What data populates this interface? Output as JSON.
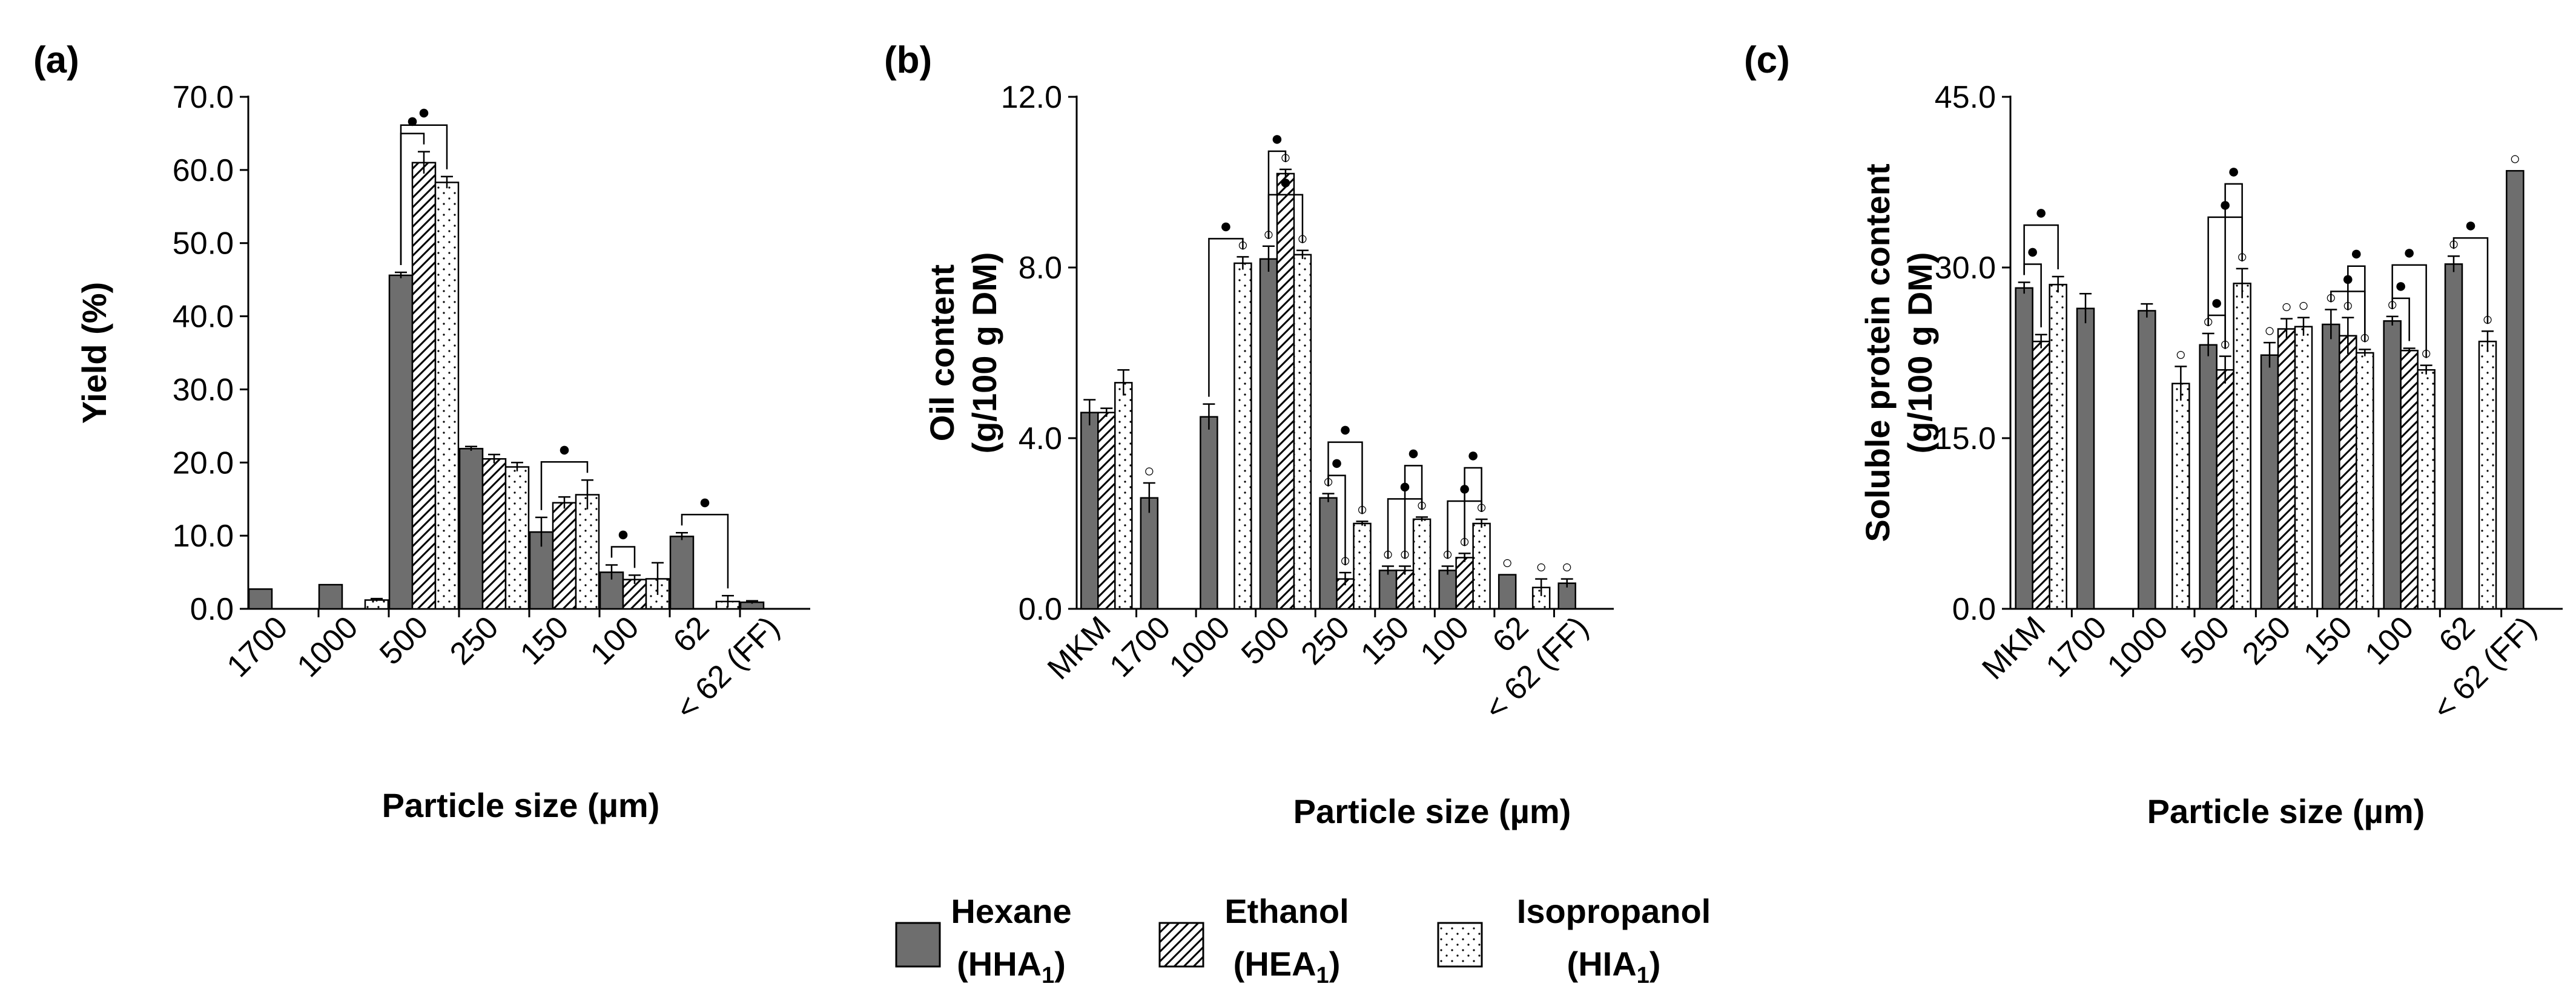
{
  "figure": {
    "legend": [
      {
        "key": "hexane",
        "name": "Hexane",
        "code": "HHA",
        "sub": "1",
        "fill": "solid"
      },
      {
        "key": "ethanol",
        "name": "Ethanol",
        "code": "HEA",
        "sub": "1",
        "fill": "hatch"
      },
      {
        "key": "isopropanol",
        "name": "Isopropanol",
        "code": "HIA",
        "sub": "1",
        "fill": "dots"
      }
    ],
    "colors": {
      "bar_solid": "#6e6e6e",
      "stroke": "#000000",
      "background": "#ffffff"
    }
  },
  "chart_data": [
    {
      "panel": "(a)",
      "type": "bar",
      "ylabel": "Yield (%)",
      "xlabel": "Particle size (µm)",
      "ylim": [
        0,
        70
      ],
      "yticks": [
        "0.0",
        "10.0",
        "20.0",
        "30.0",
        "40.0",
        "50.0",
        "60.0",
        "70.0"
      ],
      "categories": [
        "1700",
        "1000",
        "500",
        "250",
        "150",
        "100",
        "62",
        "< 62 (FF)"
      ],
      "series": [
        {
          "name": "Hexane (HHA1)",
          "values": [
            2.7,
            3.3,
            45.6,
            21.9,
            10.5,
            5.0,
            9.9,
            0.9
          ],
          "errors": [
            0,
            0,
            0.4,
            0.3,
            2.0,
            1.0,
            0.5,
            0.2
          ]
        },
        {
          "name": "Ethanol (HEA1)",
          "values": [
            null,
            null,
            61.0,
            20.5,
            14.5,
            4.0,
            null,
            null
          ],
          "errors": [
            0,
            0,
            1.5,
            0.6,
            0.8,
            0.6,
            0,
            0
          ]
        },
        {
          "name": "Isopropanol (HIA1)",
          "values": [
            null,
            1.2,
            58.3,
            19.4,
            15.6,
            4.1,
            1.0,
            null
          ],
          "errors": [
            0,
            0.2,
            0.8,
            0.6,
            2.0,
            2.2,
            0.8,
            0
          ]
        }
      ],
      "annotations": [
        {
          "text": "●",
          "category": "500",
          "span": [
            0,
            1
          ]
        },
        {
          "text": "●",
          "category": "500",
          "span": [
            0,
            2
          ]
        },
        {
          "text": "●",
          "category": "150",
          "span": [
            0,
            2
          ]
        },
        {
          "text": "●",
          "category": "100",
          "span": [
            0,
            1
          ]
        },
        {
          "text": "●",
          "category": "62",
          "span": [
            0,
            2
          ]
        }
      ]
    },
    {
      "panel": "(b)",
      "type": "bar",
      "ylabel": [
        "Oil content",
        "(g/100 g DM)"
      ],
      "xlabel": "Particle size (µm)",
      "ylim": [
        0,
        12
      ],
      "yticks": [
        "0.0",
        "4.0",
        "8.0",
        "12.0"
      ],
      "categories": [
        "MKM",
        "1700",
        "1000",
        "500",
        "250",
        "150",
        "100",
        "62",
        "< 62 (FF)"
      ],
      "series": [
        {
          "name": "Hexane (HHA1)",
          "values": [
            4.6,
            2.6,
            4.5,
            8.2,
            2.6,
            0.9,
            0.9,
            0.8,
            0.6
          ],
          "errors": [
            0.3,
            0.35,
            0.3,
            0.3,
            0.1,
            0.1,
            0.1,
            0,
            0.1
          ]
        },
        {
          "name": "Ethanol (HEA1)",
          "values": [
            4.6,
            null,
            null,
            10.2,
            0.7,
            0.9,
            1.2,
            null,
            null
          ],
          "errors": [
            0.1,
            0,
            0,
            0.1,
            0.15,
            0.1,
            0.1,
            0,
            0
          ]
        },
        {
          "name": "Isopropanol (HIA1)",
          "values": [
            5.3,
            null,
            8.1,
            8.3,
            2.0,
            2.1,
            2.0,
            0.5,
            null
          ],
          "errors": [
            0.3,
            0,
            0.15,
            0.1,
            0.05,
            0.05,
            0.1,
            0.2,
            0
          ]
        }
      ],
      "annotations": [
        {
          "text": "○",
          "category": "1700",
          "series": 0
        },
        {
          "text": "○",
          "category": "1000",
          "series": 2
        },
        {
          "text": "○",
          "category": "500",
          "series": 0
        },
        {
          "text": "○",
          "category": "500",
          "series": 1
        },
        {
          "text": "○",
          "category": "500",
          "series": 2
        },
        {
          "text": "○",
          "category": "250",
          "series": 0
        },
        {
          "text": "○",
          "category": "250",
          "series": 1
        },
        {
          "text": "○",
          "category": "250",
          "series": 2
        },
        {
          "text": "○",
          "category": "150",
          "series": 0
        },
        {
          "text": "○",
          "category": "150",
          "series": 1
        },
        {
          "text": "○",
          "category": "150",
          "series": 2
        },
        {
          "text": "○",
          "category": "100",
          "series": 0
        },
        {
          "text": "○",
          "category": "100",
          "series": 1
        },
        {
          "text": "○",
          "category": "100",
          "series": 2
        },
        {
          "text": "○",
          "category": "62",
          "series": 0
        },
        {
          "text": "○",
          "category": "62",
          "series": 2
        },
        {
          "text": "○",
          "category": "< 62 (FF)",
          "series": 0
        },
        {
          "text": "●",
          "category": "1000",
          "span": [
            0,
            2
          ]
        },
        {
          "text": "●",
          "category": "500",
          "span": [
            0,
            1
          ]
        },
        {
          "text": "●",
          "category": "500",
          "span": [
            0,
            2
          ]
        },
        {
          "text": "●",
          "category": "250",
          "span": [
            0,
            1
          ]
        },
        {
          "text": "●",
          "category": "250",
          "span": [
            0,
            2
          ]
        },
        {
          "text": "●",
          "category": "150",
          "span": [
            0,
            2
          ]
        },
        {
          "text": "●",
          "category": "150",
          "span": [
            1,
            2
          ]
        },
        {
          "text": "●",
          "category": "100",
          "span": [
            0,
            2
          ]
        },
        {
          "text": "●",
          "category": "100",
          "span": [
            1,
            2
          ]
        }
      ]
    },
    {
      "panel": "(c)",
      "type": "bar",
      "ylabel": [
        "Soluble protein content",
        "(g/100 g DM)"
      ],
      "xlabel": "Particle size (µm)",
      "ylim": [
        0,
        45
      ],
      "yticks": [
        "0.0",
        "15.0",
        "30.0",
        "45.0"
      ],
      "categories": [
        "MKM",
        "1700",
        "1000",
        "500",
        "250",
        "150",
        "100",
        "62",
        "< 62 (FF)"
      ],
      "series": [
        {
          "name": "Hexane (HHA1)",
          "values": [
            28.2,
            26.4,
            26.2,
            23.2,
            22.3,
            25.0,
            25.3,
            30.3,
            38.5
          ],
          "errors": [
            0.5,
            1.3,
            0.6,
            1.0,
            1.1,
            1.3,
            0.4,
            0.7,
            0
          ]
        },
        {
          "name": "Ethanol (HEA1)",
          "values": [
            23.5,
            null,
            null,
            21.0,
            24.6,
            24.0,
            22.7,
            null,
            null
          ],
          "errors": [
            0.6,
            0,
            0,
            1.2,
            0.9,
            1.6,
            0.2,
            0,
            0
          ]
        },
        {
          "name": "Isopropanol (HIA1)",
          "values": [
            28.5,
            null,
            19.8,
            28.6,
            24.8,
            22.5,
            21.0,
            23.5,
            null
          ],
          "errors": [
            0.7,
            0,
            1.5,
            1.3,
            0.8,
            0.3,
            0.4,
            0.9,
            0
          ]
        }
      ],
      "annotations": [
        {
          "text": "○",
          "category": "1000",
          "series": 2
        },
        {
          "text": "○",
          "category": "500",
          "series": 0
        },
        {
          "text": "○",
          "category": "500",
          "series": 1
        },
        {
          "text": "○",
          "category": "500",
          "series": 2
        },
        {
          "text": "○",
          "category": "250",
          "series": 0
        },
        {
          "text": "○",
          "category": "250",
          "series": 1
        },
        {
          "text": "○",
          "category": "250",
          "series": 2
        },
        {
          "text": "○",
          "category": "150",
          "series": 0
        },
        {
          "text": "○",
          "category": "150",
          "series": 1
        },
        {
          "text": "○",
          "category": "150",
          "series": 2
        },
        {
          "text": "○",
          "category": "100",
          "series": 0
        },
        {
          "text": "○",
          "category": "100",
          "series": 2
        },
        {
          "text": "○",
          "category": "62",
          "series": 0
        },
        {
          "text": "○",
          "category": "62",
          "series": 2
        },
        {
          "text": "○",
          "category": "< 62 (FF)",
          "series": 0
        },
        {
          "text": "●",
          "category": "MKM",
          "span": [
            0,
            1
          ]
        },
        {
          "text": "●",
          "category": "MKM",
          "span": [
            0,
            2
          ]
        },
        {
          "text": "●",
          "category": "500",
          "span": [
            0,
            1
          ]
        },
        {
          "text": "●",
          "category": "500",
          "span": [
            0,
            2
          ]
        },
        {
          "text": "●",
          "category": "500",
          "span": [
            1,
            2
          ]
        },
        {
          "text": "●",
          "category": "150",
          "span": [
            0,
            2
          ]
        },
        {
          "text": "●",
          "category": "150",
          "span": [
            1,
            2
          ]
        },
        {
          "text": "●",
          "category": "100",
          "span": [
            0,
            1
          ]
        },
        {
          "text": "●",
          "category": "100",
          "span": [
            0,
            2
          ]
        },
        {
          "text": "●",
          "category": "62",
          "span": [
            0,
            2
          ]
        }
      ]
    }
  ]
}
